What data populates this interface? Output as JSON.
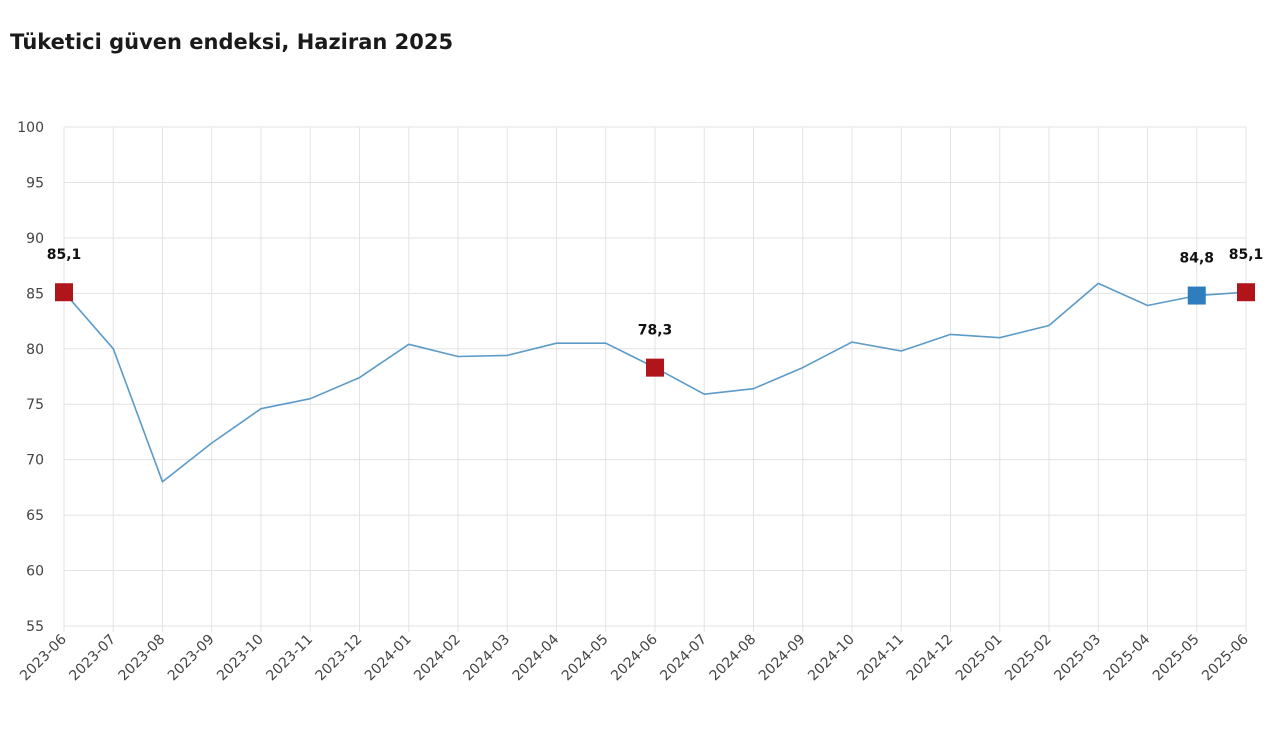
{
  "title": "Tüketici güven endeksi, Haziran 2025",
  "chart_data": {
    "type": "line",
    "title": "Tüketici güven endeksi, Haziran 2025",
    "xlabel": "",
    "ylabel": "",
    "ylim": [
      55,
      100
    ],
    "yticks": [
      55,
      60,
      65,
      70,
      75,
      80,
      85,
      90,
      95,
      100
    ],
    "grid": true,
    "line_color": "#5b9bc8",
    "categories": [
      "2023-06",
      "2023-07",
      "2023-08",
      "2023-09",
      "2023-10",
      "2023-11",
      "2023-12",
      "2024-01",
      "2024-02",
      "2024-03",
      "2024-04",
      "2024-05",
      "2024-06",
      "2024-07",
      "2024-08",
      "2024-09",
      "2024-10",
      "2024-11",
      "2024-12",
      "2025-01",
      "2025-02",
      "2025-03",
      "2025-04",
      "2025-05",
      "2025-06"
    ],
    "series": [
      {
        "values": [
          85.1,
          80.0,
          68.0,
          71.5,
          74.6,
          75.5,
          77.4,
          80.4,
          79.3,
          79.4,
          80.5,
          80.5,
          78.3,
          75.9,
          76.4,
          78.3,
          80.6,
          79.8,
          81.3,
          81.0,
          82.1,
          85.9,
          83.9,
          84.8,
          85.1
        ]
      }
    ],
    "highlights": [
      {
        "category": "2023-06",
        "value": 85.1,
        "label": "85,1",
        "color": "#b0151c"
      },
      {
        "category": "2024-06",
        "value": 78.3,
        "label": "78,3",
        "color": "#b0151c"
      },
      {
        "category": "2025-05",
        "value": 84.8,
        "label": "84,8",
        "color": "#2e7dbf"
      },
      {
        "category": "2025-06",
        "value": 85.1,
        "label": "85,1",
        "color": "#b0151c"
      }
    ]
  }
}
